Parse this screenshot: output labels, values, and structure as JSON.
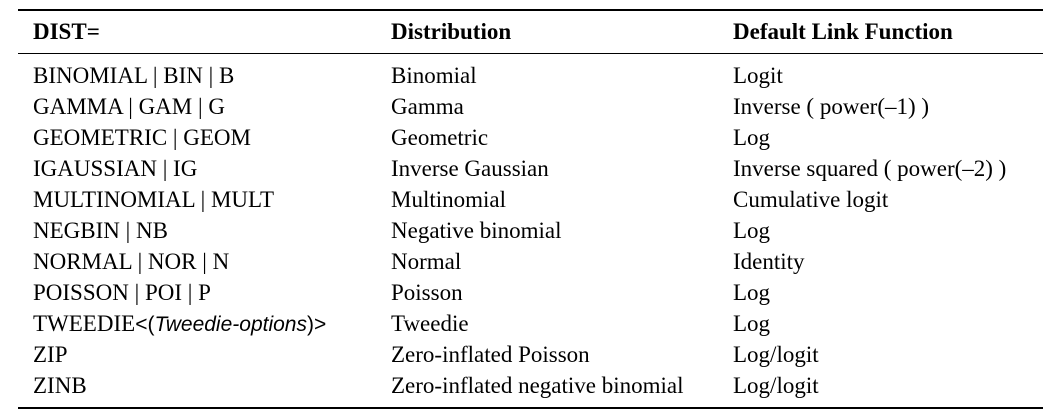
{
  "table": {
    "headers": [
      "DIST=",
      "Distribution",
      "Default Link Function"
    ],
    "rows": [
      {
        "dist": "BINOMIAL | BIN | B",
        "distribution": "Binomial",
        "link": "Logit"
      },
      {
        "dist": "GAMMA | GAM | G",
        "distribution": "Gamma",
        "link": "Inverse ( power(–1) )"
      },
      {
        "dist": "GEOMETRIC | GEOM",
        "distribution": "Geometric",
        "link": "Log"
      },
      {
        "dist": "IGAUSSIAN | IG",
        "distribution": "Inverse Gaussian",
        "link": "Inverse squared ( power(–2) )"
      },
      {
        "dist": "MULTINOMIAL | MULT",
        "distribution": "Multinomial",
        "link": "Cumulative logit"
      },
      {
        "dist": "NEGBIN | NB",
        "distribution": "Negative binomial",
        "link": "Log"
      },
      {
        "dist": "NORMAL | NOR | N",
        "distribution": "Normal",
        "link": "Identity"
      },
      {
        "dist": "POISSON | POI | P",
        "distribution": "Poisson",
        "link": "Log"
      },
      {
        "dist_prefix": "TWEEDIE",
        "dist_open": "<(",
        "dist_option": "Tweedie-options",
        "dist_close": ")>",
        "distribution": "Tweedie",
        "link": "Log"
      },
      {
        "dist": "ZIP",
        "distribution": "Zero-inflated Poisson",
        "link": "Log/logit"
      },
      {
        "dist": "ZINB",
        "distribution": "Zero-inflated negative binomial",
        "link": "Log/logit"
      }
    ]
  }
}
